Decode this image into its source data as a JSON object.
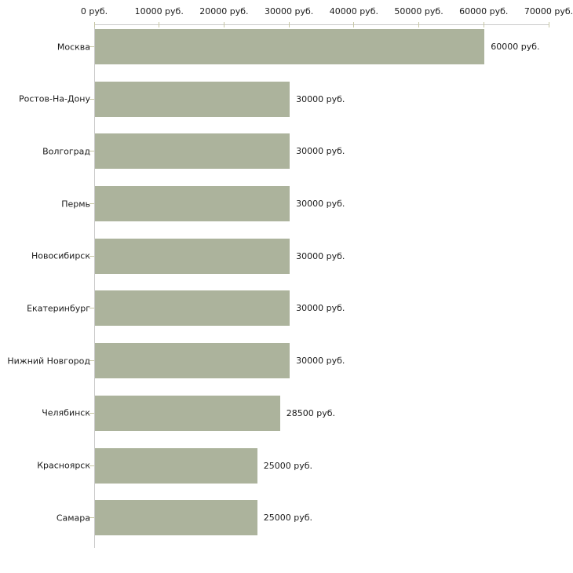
{
  "chart_data": {
    "type": "bar",
    "orientation": "horizontal",
    "title": "",
    "xlabel": "",
    "ylabel": "",
    "xlim": [
      0,
      70000
    ],
    "x_tick_step": 10000,
    "x_tick_labels": [
      "0 руб.",
      "10000 руб.",
      "20000 руб.",
      "30000 руб.",
      "40000 руб.",
      "50000 руб.",
      "60000 руб.",
      "70000 руб."
    ],
    "categories": [
      "Москва",
      "Ростов-На-Дону",
      "Волгоград",
      "Пермь",
      "Новосибирск",
      "Екатеринбург",
      "Нижний Новгород",
      "Челябинск",
      "Красноярск",
      "Самара"
    ],
    "values": [
      60000,
      30000,
      30000,
      30000,
      30000,
      30000,
      30000,
      28500,
      25000,
      25000
    ],
    "value_labels": [
      "60000 руб.",
      "30000 руб.",
      "30000 руб.",
      "30000 руб.",
      "30000 руб.",
      "30000 руб.",
      "30000 руб.",
      "28500 руб.",
      "25000 руб.",
      "25000 руб."
    ],
    "unit": "руб.",
    "grid": false,
    "legend": "none",
    "colors": {
      "bar": "#acb39c",
      "axis_line": "#c9c9c9",
      "tick": "#c6c6a3",
      "text": "#1a1a1a",
      "background": "#ffffff"
    }
  }
}
